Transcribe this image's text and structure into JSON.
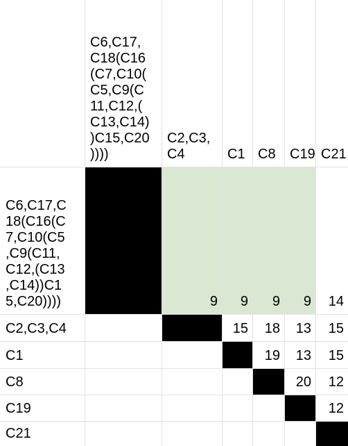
{
  "col_headers": [
    "C6,C17,\nC18(C16\n(C7,C10(\nC5,C9(C\n11,C12,(\nC13,C14)\n)C15,C20\n))))",
    "C2,C3,\nC4",
    "C1",
    "C8",
    "C19",
    "C21"
  ],
  "row_headers": [
    "C6,C17,C\n18(C16(C\n7,C10(C5\n,C9(C11,\nC12,(C13\n,C14))C1\n5,C20))))",
    "C2,C3,C4",
    "C1",
    "C8",
    "C19",
    "C21"
  ],
  "matrix": [
    [
      "",
      "9",
      "9",
      "9",
      "9",
      "14"
    ],
    [
      "",
      "",
      "15",
      "18",
      "13",
      "15"
    ],
    [
      "",
      "",
      "",
      "19",
      "13",
      "15"
    ],
    [
      "",
      "",
      "",
      "",
      "20",
      "12"
    ],
    [
      "",
      "",
      "",
      "",
      "",
      "12"
    ],
    [
      "",
      "",
      "",
      "",
      "",
      ""
    ]
  ],
  "colors": {
    "diagonal": "#000000",
    "highlight": "#d9e7d3",
    "gridline": "#e2e2e2"
  }
}
